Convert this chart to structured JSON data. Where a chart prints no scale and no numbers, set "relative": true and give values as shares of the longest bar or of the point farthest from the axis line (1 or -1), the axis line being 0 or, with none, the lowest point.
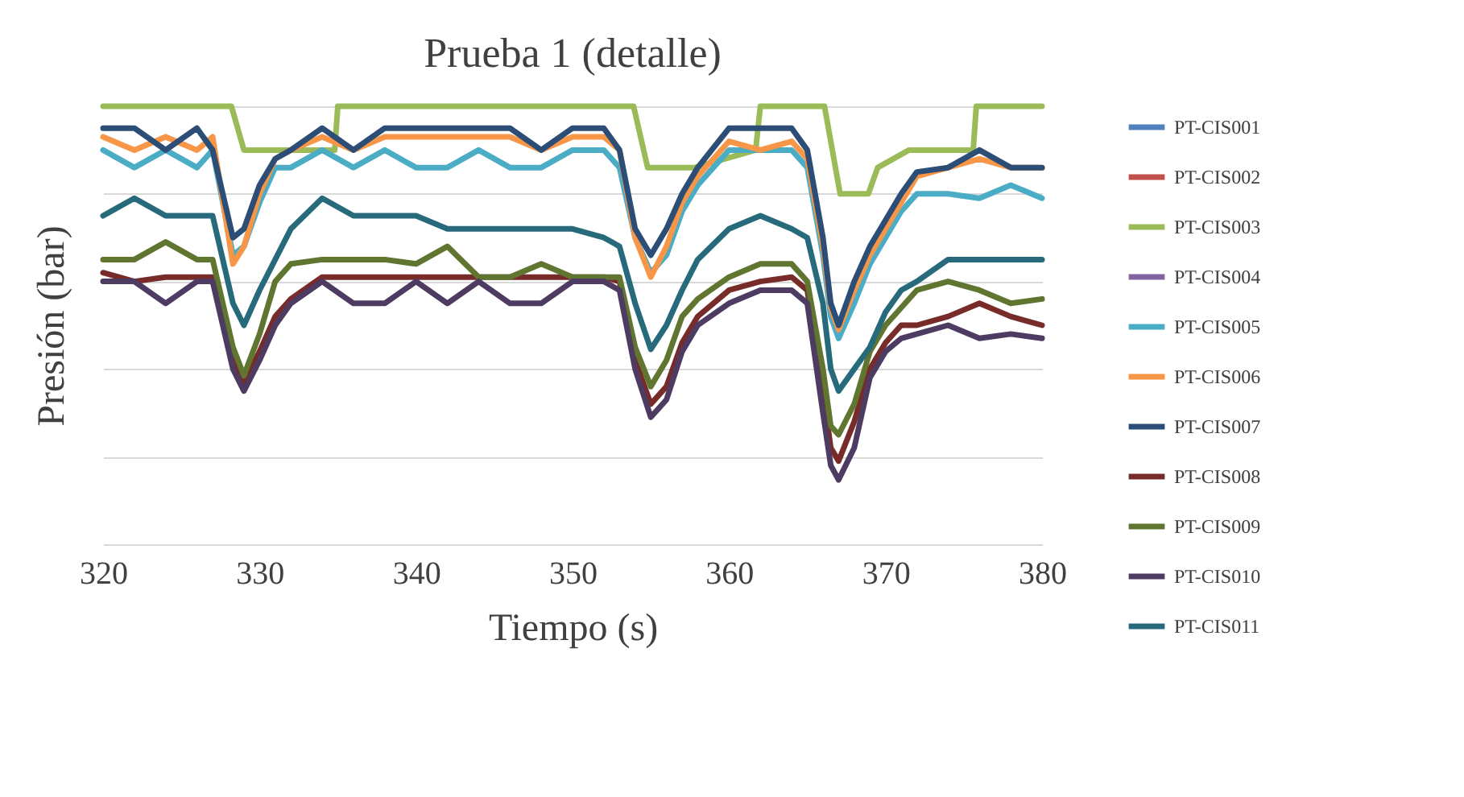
{
  "chart_data": {
    "type": "line",
    "title": "Prueba 1 (detalle)",
    "xlabel": "Tiempo (s)",
    "ylabel": "Presión (bar)",
    "relative": true,
    "xlim": [
      320,
      380
    ],
    "xticks": [
      320,
      330,
      340,
      350,
      360,
      370,
      380
    ],
    "grid": "y",
    "legend": "right",
    "line_style": "solid",
    "marker": "none",
    "x": [
      320,
      322,
      324,
      326,
      327,
      328.3,
      329,
      330,
      331,
      332,
      334,
      336,
      338,
      340,
      342,
      344,
      346,
      348,
      350,
      352,
      353,
      354,
      355,
      356,
      357,
      358,
      360,
      362,
      364,
      365,
      366,
      366.5,
      367,
      368,
      369,
      370,
      371,
      372,
      374,
      376,
      378,
      380
    ],
    "series": [
      {
        "name": "PT-CIS001",
        "color": "#4f81bd",
        "values": [
          null,
          null,
          null,
          null,
          null,
          null,
          null,
          null,
          null,
          null,
          null,
          null,
          null,
          null,
          null,
          null,
          null,
          null,
          null,
          null,
          null,
          null,
          null,
          null,
          null,
          null,
          null,
          null,
          null,
          null,
          null,
          null,
          null,
          null,
          null,
          null,
          null,
          null,
          null,
          null,
          null,
          null
        ]
      },
      {
        "name": "PT-CIS002",
        "color": "#c0504d",
        "values": [
          null,
          null,
          null,
          null,
          null,
          null,
          null,
          null,
          null,
          null,
          null,
          null,
          null,
          null,
          null,
          null,
          null,
          null,
          null,
          null,
          null,
          null,
          null,
          null,
          null,
          null,
          null,
          null,
          null,
          null,
          null,
          null,
          null,
          null,
          null,
          null,
          null,
          null,
          null,
          null,
          null,
          null
        ]
      },
      {
        "name": "PT-CIS003",
        "color": "#9bbb59",
        "x": [
          320,
          328.2,
          329,
          334.8,
          335,
          353.9,
          354.8,
          357.8,
          361.7,
          362,
          366.1,
          367.1,
          368.9,
          369.5,
          371.5,
          375.6,
          375.8,
          380
        ],
        "values": [
          1,
          1,
          0.9,
          0.9,
          1,
          1,
          0.86,
          0.86,
          0.9,
          1,
          1,
          0.8,
          0.8,
          0.86,
          0.9,
          0.9,
          1,
          1
        ]
      },
      {
        "name": "PT-CIS004",
        "color": "#8064a2",
        "values": [
          null,
          null,
          null,
          null,
          null,
          null,
          null,
          null,
          null,
          null,
          null,
          null,
          null,
          null,
          null,
          null,
          null,
          null,
          null,
          null,
          null,
          null,
          null,
          null,
          null,
          null,
          null,
          null,
          null,
          null,
          null,
          null,
          null,
          null,
          null,
          null,
          null,
          null,
          null,
          null,
          null,
          null
        ]
      },
      {
        "name": "PT-CIS005",
        "color": "#4bacc6",
        "values": [
          0.9,
          0.86,
          0.9,
          0.86,
          0.9,
          0.66,
          0.68,
          0.78,
          0.86,
          0.86,
          0.9,
          0.86,
          0.9,
          0.86,
          0.86,
          0.9,
          0.86,
          0.86,
          0.9,
          0.9,
          0.86,
          0.7,
          0.62,
          0.66,
          0.76,
          0.82,
          0.9,
          0.9,
          0.9,
          0.86,
          0.66,
          0.52,
          0.47,
          0.55,
          0.64,
          0.7,
          0.76,
          0.8,
          0.8,
          0.79,
          0.82,
          0.79
        ]
      },
      {
        "name": "PT-CIS006",
        "color": "#f79646",
        "values": [
          0.93,
          0.9,
          0.93,
          0.9,
          0.93,
          0.64,
          0.68,
          0.8,
          0.88,
          0.9,
          0.93,
          0.9,
          0.93,
          0.93,
          0.93,
          0.93,
          0.93,
          0.9,
          0.93,
          0.93,
          0.9,
          0.7,
          0.61,
          0.68,
          0.78,
          0.84,
          0.92,
          0.9,
          0.92,
          0.88,
          0.68,
          0.54,
          0.49,
          0.58,
          0.66,
          0.72,
          0.78,
          0.84,
          0.86,
          0.88,
          0.86,
          0.86
        ]
      },
      {
        "name": "PT-CIS007",
        "color": "#2c4d75",
        "values": [
          0.95,
          0.95,
          0.9,
          0.95,
          0.9,
          0.7,
          0.72,
          0.82,
          0.88,
          0.9,
          0.95,
          0.9,
          0.95,
          0.95,
          0.95,
          0.95,
          0.95,
          0.9,
          0.95,
          0.95,
          0.9,
          0.72,
          0.66,
          0.72,
          0.8,
          0.86,
          0.95,
          0.95,
          0.95,
          0.9,
          0.7,
          0.55,
          0.5,
          0.6,
          0.68,
          0.74,
          0.8,
          0.85,
          0.86,
          0.9,
          0.86,
          0.86
        ]
      },
      {
        "name": "PT-CIS008",
        "color": "#772c2a",
        "values": [
          0.62,
          0.6,
          0.61,
          0.61,
          0.61,
          0.42,
          0.37,
          0.44,
          0.52,
          0.56,
          0.61,
          0.61,
          0.61,
          0.61,
          0.61,
          0.61,
          0.61,
          0.61,
          0.61,
          0.61,
          0.6,
          0.42,
          0.32,
          0.36,
          0.46,
          0.52,
          0.58,
          0.6,
          0.61,
          0.58,
          0.35,
          0.22,
          0.19,
          0.28,
          0.4,
          0.46,
          0.5,
          0.5,
          0.52,
          0.55,
          0.52,
          0.5
        ]
      },
      {
        "name": "PT-CIS009",
        "color": "#5f7530",
        "values": [
          0.65,
          0.65,
          0.69,
          0.65,
          0.65,
          0.45,
          0.385,
          0.48,
          0.6,
          0.64,
          0.65,
          0.65,
          0.65,
          0.64,
          0.68,
          0.61,
          0.61,
          0.64,
          0.61,
          0.61,
          0.61,
          0.45,
          0.36,
          0.42,
          0.52,
          0.56,
          0.61,
          0.64,
          0.64,
          0.6,
          0.4,
          0.27,
          0.25,
          0.32,
          0.44,
          0.5,
          0.54,
          0.58,
          0.6,
          0.58,
          0.55,
          0.56
        ]
      },
      {
        "name": "PT-CIS010",
        "color": "#4d3b62",
        "values": [
          0.6,
          0.6,
          0.55,
          0.6,
          0.6,
          0.4,
          0.35,
          0.42,
          0.5,
          0.55,
          0.6,
          0.55,
          0.55,
          0.6,
          0.55,
          0.6,
          0.55,
          0.55,
          0.6,
          0.6,
          0.58,
          0.4,
          0.29,
          0.33,
          0.44,
          0.5,
          0.55,
          0.58,
          0.58,
          0.55,
          0.3,
          0.18,
          0.147,
          0.22,
          0.38,
          0.44,
          0.47,
          0.48,
          0.5,
          0.47,
          0.48,
          0.47
        ]
      },
      {
        "name": "PT-CIS011",
        "color": "#276a7c",
        "values": [
          0.75,
          0.79,
          0.75,
          0.75,
          0.75,
          0.55,
          0.5,
          0.58,
          0.65,
          0.72,
          0.79,
          0.75,
          0.75,
          0.75,
          0.72,
          0.72,
          0.72,
          0.72,
          0.72,
          0.7,
          0.68,
          0.55,
          0.445,
          0.5,
          0.58,
          0.65,
          0.72,
          0.75,
          0.72,
          0.7,
          0.55,
          0.4,
          0.35,
          0.4,
          0.45,
          0.53,
          0.58,
          0.6,
          0.65,
          0.65,
          0.65,
          0.65
        ]
      }
    ]
  }
}
